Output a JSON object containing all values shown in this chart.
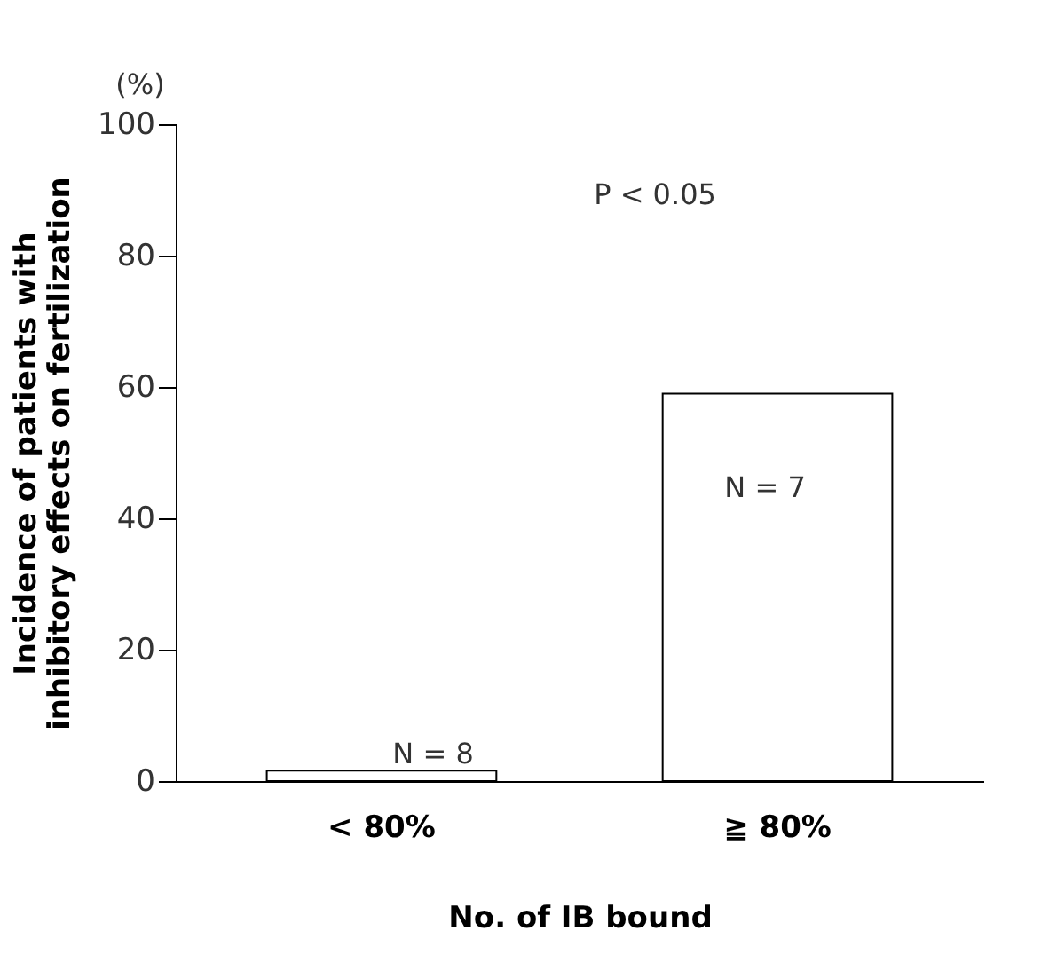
{
  "chart_data": {
    "type": "bar",
    "xlabel": "No. of IB bound",
    "ylabel": "Incidence of patients with inhibitory effects on fertilization",
    "categories": [
      "< 80%",
      "≧ 80%"
    ],
    "values": [
      1.6,
      59
    ],
    "color": "#ffffff",
    "ylim": [
      0,
      100
    ],
    "yticks": [
      0,
      20,
      40,
      60,
      80,
      100
    ],
    "grid": false,
    "annotations": [
      "(%)",
      "P < 0.05",
      "N = 8",
      "N = 7"
    ]
  }
}
